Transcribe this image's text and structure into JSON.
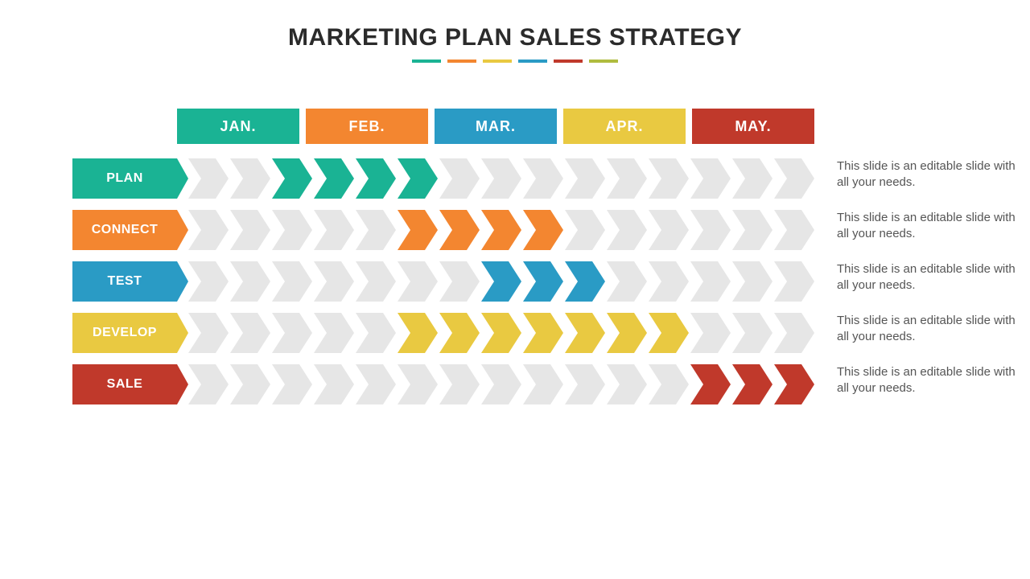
{
  "title": "MARKETING PLAN SALES STRATEGY",
  "accent_colors": [
    "#1ab394",
    "#f38630",
    "#e9c941",
    "#2a9bc5",
    "#c0392b",
    "#b0bc3f"
  ],
  "gray_chevron": "#e6e6e6",
  "months": [
    {
      "label": "JAN.",
      "color": "#1ab394"
    },
    {
      "label": "FEB.",
      "color": "#f38630"
    },
    {
      "label": "MAR.",
      "color": "#2a9bc5"
    },
    {
      "label": "APR.",
      "color": "#e9c941"
    },
    {
      "label": "MAY.",
      "color": "#c0392b"
    }
  ],
  "total_chevrons": 15,
  "rows": [
    {
      "label": "PLAN",
      "color": "#1ab394",
      "filled": [
        2,
        3,
        4,
        5
      ],
      "desc": "This slide is an editable slide with all your needs."
    },
    {
      "label": "CONNECT",
      "color": "#f38630",
      "filled": [
        5,
        6,
        7,
        8
      ],
      "desc": "This slide is an editable slide with all your needs."
    },
    {
      "label": "TEST",
      "color": "#2a9bc5",
      "filled": [
        7,
        8,
        9
      ],
      "desc": "This slide is an editable slide with all your needs."
    },
    {
      "label": "DEVELOP",
      "color": "#e9c941",
      "filled": [
        5,
        6,
        7,
        8,
        9,
        10,
        11
      ],
      "desc": "This slide is an editable slide with all your needs."
    },
    {
      "label": "SALE",
      "color": "#c0392b",
      "filled": [
        12,
        13,
        14
      ],
      "desc": "This slide is an editable slide with all your needs."
    }
  ]
}
